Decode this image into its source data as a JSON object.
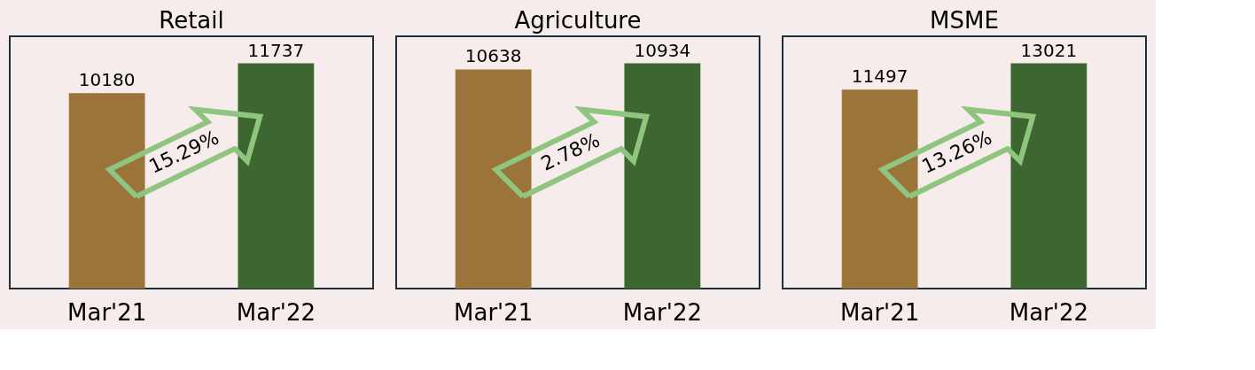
{
  "chart_data": [
    {
      "type": "bar",
      "title": "Retail",
      "categories": [
        "Mar'21",
        "Mar'22"
      ],
      "values": [
        10180,
        11737
      ],
      "colors": [
        "#9b7439",
        "#3d6630"
      ],
      "data_labels": true,
      "annotations": [
        "15.29%"
      ]
    },
    {
      "type": "bar",
      "title": "Agriculture",
      "categories": [
        "Mar'21",
        "Mar'22"
      ],
      "values": [
        10638,
        10934
      ],
      "colors": [
        "#9b7439",
        "#3d6630"
      ],
      "data_labels": true,
      "annotations": [
        "2.78%"
      ]
    },
    {
      "type": "bar",
      "title": "MSME",
      "categories": [
        "Mar'21",
        "Mar'22"
      ],
      "values": [
        11497,
        13021
      ],
      "colors": [
        "#9b7439",
        "#3d6630"
      ],
      "data_labels": true,
      "annotations": [
        "13.26%"
      ]
    }
  ]
}
